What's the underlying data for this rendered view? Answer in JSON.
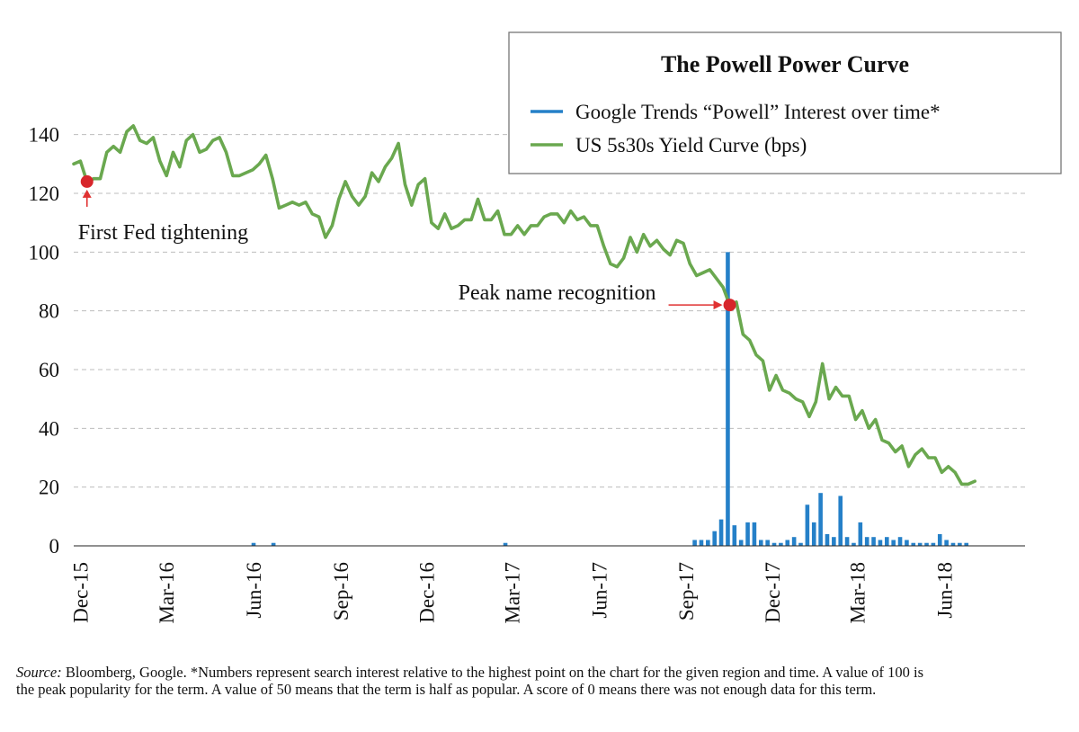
{
  "chart_data": {
    "type": "line",
    "title": "The Powell Power Curve",
    "xlabel": "",
    "ylabel": "",
    "ylim": [
      0,
      150
    ],
    "yticks": [
      0,
      20,
      40,
      60,
      80,
      100,
      120,
      140
    ],
    "xlim": [
      "2015-11-24",
      "2018-08-25"
    ],
    "grid": "horizontal dashed",
    "legend_position": "top-right",
    "x_ticks": [
      {
        "label": "Dec-15",
        "date": "2015-12-01"
      },
      {
        "label": "Mar-16",
        "date": "2016-03-01"
      },
      {
        "label": "Jun-16",
        "date": "2016-06-01"
      },
      {
        "label": "Sep-16",
        "date": "2016-09-01"
      },
      {
        "label": "Dec-16",
        "date": "2016-12-01"
      },
      {
        "label": "Mar-17",
        "date": "2017-03-01"
      },
      {
        "label": "Jun-17",
        "date": "2017-06-01"
      },
      {
        "label": "Sep-17",
        "date": "2017-09-01"
      },
      {
        "label": "Dec-17",
        "date": "2017-12-01"
      },
      {
        "label": "Mar-18",
        "date": "2018-03-01"
      },
      {
        "label": "Jun-18",
        "date": "2018-06-01"
      }
    ],
    "series": [
      {
        "name": "Google Trends “Powell” Interest over time*",
        "type": "bar",
        "color": "#2580c8",
        "points": [
          [
            "2016-06-01",
            1
          ],
          [
            "2016-06-22",
            1
          ],
          [
            "2017-02-22",
            1
          ],
          [
            "2017-09-10",
            2
          ],
          [
            "2017-09-17",
            2
          ],
          [
            "2017-09-24",
            2
          ],
          [
            "2017-10-01",
            5
          ],
          [
            "2017-10-08",
            9
          ],
          [
            "2017-10-15",
            100
          ],
          [
            "2017-10-22",
            7
          ],
          [
            "2017-10-29",
            2
          ],
          [
            "2017-11-05",
            8
          ],
          [
            "2017-11-12",
            8
          ],
          [
            "2017-11-19",
            2
          ],
          [
            "2017-11-26",
            2
          ],
          [
            "2017-12-03",
            1
          ],
          [
            "2017-12-10",
            1
          ],
          [
            "2017-12-17",
            2
          ],
          [
            "2017-12-24",
            3
          ],
          [
            "2017-12-31",
            1
          ],
          [
            "2018-01-07",
            14
          ],
          [
            "2018-01-14",
            8
          ],
          [
            "2018-01-21",
            18
          ],
          [
            "2018-01-28",
            4
          ],
          [
            "2018-02-04",
            3
          ],
          [
            "2018-02-11",
            17
          ],
          [
            "2018-02-18",
            3
          ],
          [
            "2018-02-25",
            1
          ],
          [
            "2018-03-04",
            8
          ],
          [
            "2018-03-11",
            3
          ],
          [
            "2018-03-18",
            3
          ],
          [
            "2018-03-25",
            2
          ],
          [
            "2018-04-01",
            3
          ],
          [
            "2018-04-08",
            2
          ],
          [
            "2018-04-15",
            3
          ],
          [
            "2018-04-22",
            2
          ],
          [
            "2018-04-29",
            1
          ],
          [
            "2018-05-06",
            1
          ],
          [
            "2018-05-13",
            1
          ],
          [
            "2018-05-20",
            1
          ],
          [
            "2018-05-27",
            4
          ],
          [
            "2018-06-03",
            2
          ],
          [
            "2018-06-10",
            1
          ],
          [
            "2018-06-17",
            1
          ],
          [
            "2018-06-24",
            1
          ]
        ]
      },
      {
        "name": "US 5s30s Yield Curve (bps)",
        "type": "line",
        "color": "#6aa84f",
        "points": [
          [
            "2015-11-24",
            130
          ],
          [
            "2015-12-01",
            131
          ],
          [
            "2015-12-08",
            124
          ],
          [
            "2015-12-15",
            125
          ],
          [
            "2015-12-22",
            125
          ],
          [
            "2015-12-29",
            134
          ],
          [
            "2016-01-05",
            136
          ],
          [
            "2016-01-12",
            134
          ],
          [
            "2016-01-19",
            141
          ],
          [
            "2016-01-26",
            143
          ],
          [
            "2016-02-02",
            138
          ],
          [
            "2016-02-09",
            137
          ],
          [
            "2016-02-16",
            139
          ],
          [
            "2016-02-23",
            131
          ],
          [
            "2016-03-01",
            126
          ],
          [
            "2016-03-08",
            134
          ],
          [
            "2016-03-15",
            129
          ],
          [
            "2016-03-22",
            138
          ],
          [
            "2016-03-29",
            140
          ],
          [
            "2016-04-05",
            134
          ],
          [
            "2016-04-12",
            135
          ],
          [
            "2016-04-19",
            138
          ],
          [
            "2016-04-26",
            139
          ],
          [
            "2016-05-03",
            134
          ],
          [
            "2016-05-10",
            126
          ],
          [
            "2016-05-17",
            126
          ],
          [
            "2016-05-24",
            127
          ],
          [
            "2016-05-31",
            128
          ],
          [
            "2016-06-07",
            130
          ],
          [
            "2016-06-14",
            133
          ],
          [
            "2016-06-21",
            125
          ],
          [
            "2016-06-28",
            115
          ],
          [
            "2016-07-05",
            116
          ],
          [
            "2016-07-12",
            117
          ],
          [
            "2016-07-19",
            116
          ],
          [
            "2016-07-26",
            117
          ],
          [
            "2016-08-02",
            113
          ],
          [
            "2016-08-09",
            112
          ],
          [
            "2016-08-16",
            105
          ],
          [
            "2016-08-23",
            109
          ],
          [
            "2016-08-30",
            118
          ],
          [
            "2016-09-06",
            124
          ],
          [
            "2016-09-13",
            119
          ],
          [
            "2016-09-20",
            116
          ],
          [
            "2016-09-27",
            119
          ],
          [
            "2016-10-04",
            127
          ],
          [
            "2016-10-11",
            124
          ],
          [
            "2016-10-18",
            129
          ],
          [
            "2016-10-25",
            132
          ],
          [
            "2016-11-01",
            137
          ],
          [
            "2016-11-08",
            123
          ],
          [
            "2016-11-15",
            116
          ],
          [
            "2016-11-22",
            123
          ],
          [
            "2016-11-29",
            125
          ],
          [
            "2016-12-06",
            110
          ],
          [
            "2016-12-13",
            108
          ],
          [
            "2016-12-20",
            113
          ],
          [
            "2016-12-27",
            108
          ],
          [
            "2017-01-03",
            109
          ],
          [
            "2017-01-10",
            111
          ],
          [
            "2017-01-17",
            111
          ],
          [
            "2017-01-24",
            118
          ],
          [
            "2017-01-31",
            111
          ],
          [
            "2017-02-07",
            111
          ],
          [
            "2017-02-14",
            114
          ],
          [
            "2017-02-21",
            106
          ],
          [
            "2017-02-28",
            106
          ],
          [
            "2017-03-07",
            109
          ],
          [
            "2017-03-14",
            106
          ],
          [
            "2017-03-21",
            109
          ],
          [
            "2017-03-28",
            109
          ],
          [
            "2017-04-04",
            112
          ],
          [
            "2017-04-11",
            113
          ],
          [
            "2017-04-18",
            113
          ],
          [
            "2017-04-25",
            110
          ],
          [
            "2017-05-02",
            114
          ],
          [
            "2017-05-09",
            111
          ],
          [
            "2017-05-16",
            112
          ],
          [
            "2017-05-23",
            109
          ],
          [
            "2017-05-30",
            109
          ],
          [
            "2017-06-06",
            102
          ],
          [
            "2017-06-13",
            96
          ],
          [
            "2017-06-20",
            95
          ],
          [
            "2017-06-27",
            98
          ],
          [
            "2017-07-04",
            105
          ],
          [
            "2017-07-11",
            100
          ],
          [
            "2017-07-18",
            106
          ],
          [
            "2017-07-25",
            102
          ],
          [
            "2017-08-01",
            104
          ],
          [
            "2017-08-08",
            101
          ],
          [
            "2017-08-15",
            99
          ],
          [
            "2017-08-22",
            104
          ],
          [
            "2017-08-29",
            103
          ],
          [
            "2017-09-05",
            96
          ],
          [
            "2017-09-12",
            92
          ],
          [
            "2017-09-19",
            93
          ],
          [
            "2017-09-26",
            94
          ],
          [
            "2017-10-03",
            91
          ],
          [
            "2017-10-10",
            88
          ],
          [
            "2017-10-17",
            82
          ],
          [
            "2017-10-24",
            83
          ],
          [
            "2017-10-31",
            72
          ],
          [
            "2017-11-07",
            70
          ],
          [
            "2017-11-14",
            65
          ],
          [
            "2017-11-21",
            63
          ],
          [
            "2017-11-28",
            53
          ],
          [
            "2017-12-05",
            58
          ],
          [
            "2017-12-12",
            53
          ],
          [
            "2017-12-19",
            52
          ],
          [
            "2017-12-26",
            50
          ],
          [
            "2018-01-02",
            49
          ],
          [
            "2018-01-09",
            44
          ],
          [
            "2018-01-16",
            49
          ],
          [
            "2018-01-23",
            62
          ],
          [
            "2018-01-30",
            50
          ],
          [
            "2018-02-06",
            54
          ],
          [
            "2018-02-13",
            51
          ],
          [
            "2018-02-20",
            51
          ],
          [
            "2018-02-27",
            43
          ],
          [
            "2018-03-06",
            46
          ],
          [
            "2018-03-13",
            40
          ],
          [
            "2018-03-20",
            43
          ],
          [
            "2018-03-27",
            36
          ],
          [
            "2018-04-03",
            35
          ],
          [
            "2018-04-10",
            32
          ],
          [
            "2018-04-17",
            34
          ],
          [
            "2018-04-24",
            27
          ],
          [
            "2018-05-01",
            31
          ],
          [
            "2018-05-08",
            33
          ],
          [
            "2018-05-15",
            30
          ],
          [
            "2018-05-22",
            30
          ],
          [
            "2018-05-29",
            25
          ],
          [
            "2018-06-05",
            27
          ],
          [
            "2018-06-12",
            25
          ],
          [
            "2018-06-19",
            21
          ],
          [
            "2018-06-26",
            21
          ],
          [
            "2018-07-03",
            22
          ]
        ]
      }
    ],
    "annotations": [
      {
        "text": "First Fed tightening",
        "date": "2015-12-08",
        "value": 124,
        "arrow": "up"
      },
      {
        "text": "Peak name recognition",
        "date": "2017-10-17",
        "value": 82,
        "arrow": "right"
      }
    ]
  },
  "source_note": {
    "label": "Source:",
    "text": "Bloomberg, Google. *Numbers represent search interest relative to the highest point on the chart for the given region and time. A value of 100 is the peak popularity for the term. A value of 50 means that the term is half as popular. A score of 0 means there was not enough data for this term."
  }
}
